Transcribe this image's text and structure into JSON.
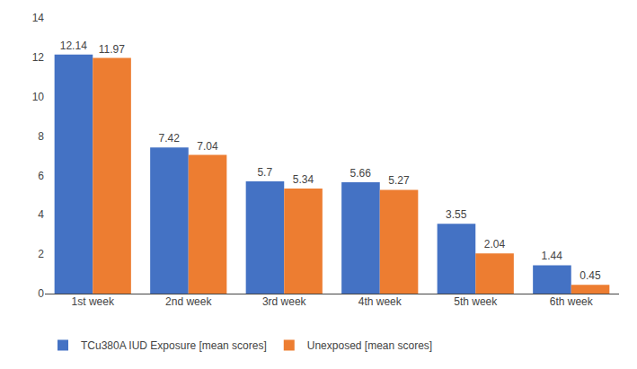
{
  "chart_data": {
    "type": "bar",
    "categories": [
      "1st week",
      "2nd week",
      "3rd week",
      "4th week",
      "5th week",
      "6th week"
    ],
    "series": [
      {
        "name": "TCu380A IUD Exposure [mean scores]",
        "color": "#4472C4",
        "values": [
          12.14,
          7.42,
          5.7,
          5.66,
          3.55,
          1.44
        ]
      },
      {
        "name": "Unexposed [mean scores]",
        "color": "#ED7D31",
        "values": [
          11.97,
          7.04,
          5.34,
          5.27,
          2.04,
          0.45
        ]
      }
    ],
    "ylim": [
      0,
      14
    ],
    "yticks": [
      0,
      2,
      4,
      6,
      8,
      10,
      12,
      14
    ],
    "grid": false,
    "legend": "bottom left",
    "data_labels": true
  }
}
